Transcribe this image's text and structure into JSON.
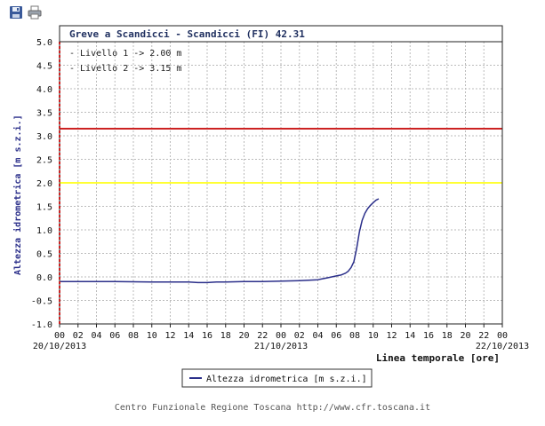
{
  "toolbar": {
    "icons": [
      "save-icon",
      "print-icon"
    ]
  },
  "footer": {
    "credit": "Centro Funzionale Regione Toscana http://www.cfr.toscana.it"
  },
  "colors": {
    "title_bar": "#1f2f5f",
    "series": "#2b2f8a",
    "level1": "#ffff33",
    "level2": "#cc2222",
    "frame": "#222222",
    "grid": "#bbbbbb",
    "y_axis_label": "#2b2f8a"
  },
  "chart_data": {
    "type": "line",
    "title": "Greve a Scandicci - Scandicci (FI) 42.31",
    "annotations": [
      "- Livello 1 -> 2.00 m",
      "- Livello 2 -> 3.15 m"
    ],
    "ylabel": "Altezza idrometrica [m s.z.i.]",
    "xlabel": "Linea temporale [ore]",
    "ylim": [
      -1.0,
      5.0
    ],
    "y_ticks": [
      "-1.0",
      "-0.5",
      "0.0",
      "0.5",
      "1.0",
      "1.5",
      "2.0",
      "2.5",
      "3.0",
      "3.5",
      "4.0",
      "4.5",
      "5.0"
    ],
    "xlim": [
      0,
      48
    ],
    "x_ticks": [
      "00",
      "02",
      "04",
      "06",
      "08",
      "10",
      "12",
      "14",
      "16",
      "18",
      "20",
      "22",
      "00",
      "02",
      "04",
      "06",
      "08",
      "10",
      "12",
      "14",
      "16",
      "18",
      "20",
      "22",
      "00"
    ],
    "x_dates": [
      {
        "hour": 0,
        "label": "20/10/2013"
      },
      {
        "hour": 24,
        "label": "21/10/2013"
      },
      {
        "hour": 48,
        "label": "22/10/2013"
      }
    ],
    "grid": true,
    "reference_lines": [
      {
        "name": "Livello 1",
        "value": 2.0
      },
      {
        "name": "Livello 2",
        "value": 3.15
      }
    ],
    "legend_position": "bottom-center",
    "series": [
      {
        "name": "Altezza idrometrica [m s.z.i.]",
        "x": [
          0,
          6,
          10,
          12,
          14,
          15,
          16,
          17,
          18,
          20,
          22,
          24,
          26,
          27,
          28,
          28.5,
          29,
          29.5,
          30,
          30.5,
          31,
          31.3,
          31.6,
          31.9,
          32.2,
          32.5,
          32.8,
          33.1,
          33.4,
          33.7,
          34.0,
          34.3,
          34.6
        ],
        "y": [
          -0.1,
          -0.1,
          -0.11,
          -0.11,
          -0.11,
          -0.12,
          -0.12,
          -0.11,
          -0.11,
          -0.1,
          -0.1,
          -0.09,
          -0.08,
          -0.07,
          -0.06,
          -0.04,
          -0.02,
          0.0,
          0.02,
          0.04,
          0.08,
          0.12,
          0.2,
          0.32,
          0.6,
          0.95,
          1.2,
          1.35,
          1.45,
          1.52,
          1.58,
          1.63,
          1.66
        ]
      }
    ]
  }
}
